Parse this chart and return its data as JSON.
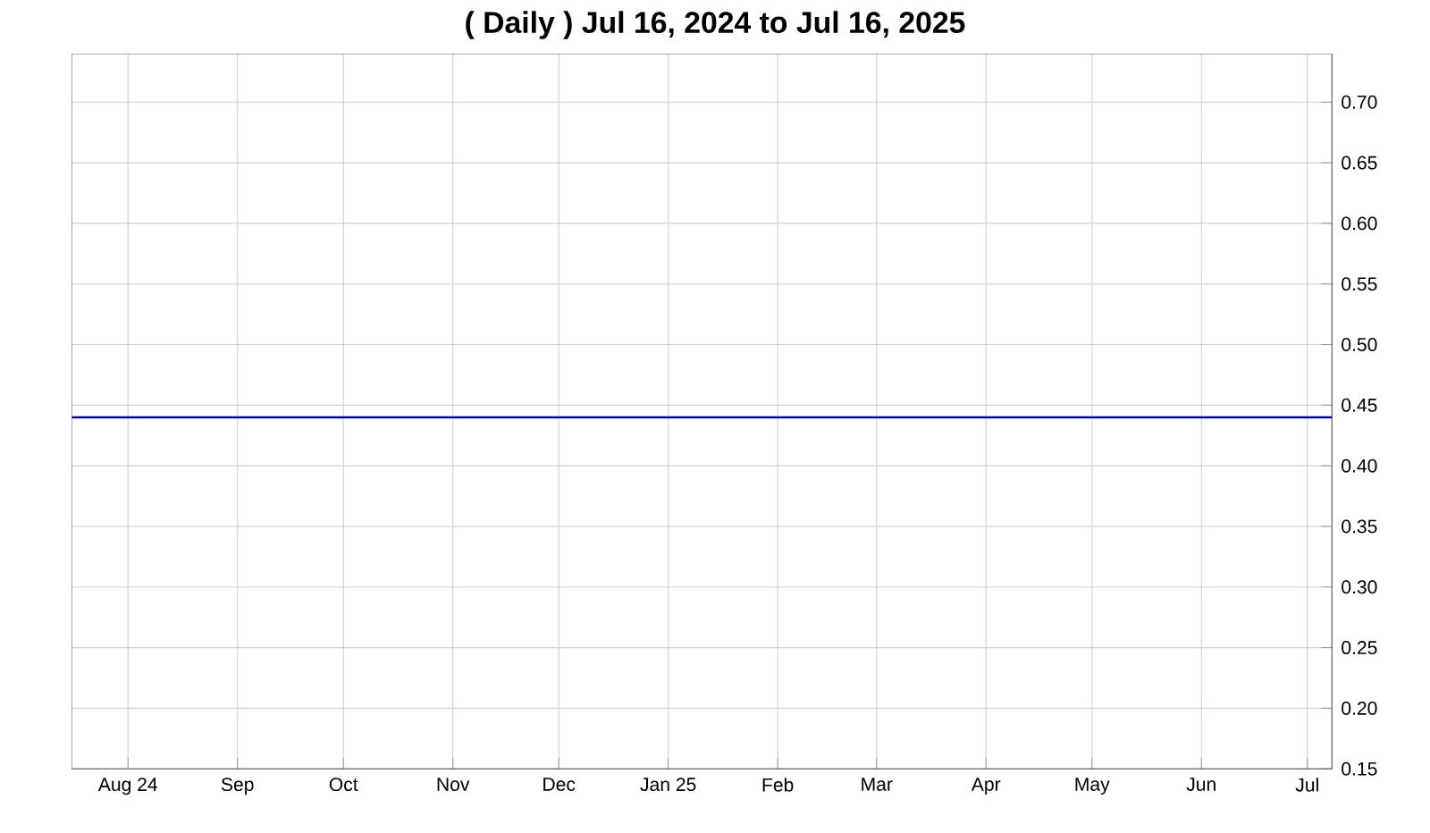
{
  "chart_data": {
    "type": "line",
    "title": "( Daily ) Jul 16, 2024 to Jul 16, 2025",
    "x": [
      "2024-07-16",
      "2025-07-08"
    ],
    "series": [
      {
        "color": "#000080",
        "values": [
          0.44,
          0.44
        ]
      }
    ],
    "xlim": [
      "2024-07-16",
      "2025-07-08"
    ],
    "xticks": [
      {
        "value": "2024-08-01",
        "label": "Aug 24"
      },
      {
        "value": "2024-09-01",
        "label": "Sep"
      },
      {
        "value": "2024-10-01",
        "label": "Oct"
      },
      {
        "value": "2024-11-01",
        "label": "Nov"
      },
      {
        "value": "2024-12-01",
        "label": "Dec"
      },
      {
        "value": "2025-01-01",
        "label": "Jan 25"
      },
      {
        "value": "2025-02-01",
        "label": "Feb"
      },
      {
        "value": "2025-03-01",
        "label": "Mar"
      },
      {
        "value": "2025-04-01",
        "label": "Apr"
      },
      {
        "value": "2025-05-01",
        "label": "May"
      },
      {
        "value": "2025-06-01",
        "label": "Jun"
      },
      {
        "value": "2025-07-01",
        "label": "Jul"
      }
    ],
    "ylim": [
      0.15,
      0.74
    ],
    "yticks": [
      {
        "value": 0.15,
        "label": "0.15"
      },
      {
        "value": 0.2,
        "label": "0.20"
      },
      {
        "value": 0.25,
        "label": "0.25"
      },
      {
        "value": 0.3,
        "label": "0.30"
      },
      {
        "value": 0.35,
        "label": "0.35"
      },
      {
        "value": 0.4,
        "label": "0.40"
      },
      {
        "value": 0.45,
        "label": "0.45"
      },
      {
        "value": 0.5,
        "label": "0.50"
      },
      {
        "value": 0.55,
        "label": "0.55"
      },
      {
        "value": 0.6,
        "label": "0.60"
      },
      {
        "value": 0.65,
        "label": "0.65"
      },
      {
        "value": 0.7,
        "label": "0.70"
      }
    ],
    "grid": true,
    "legend": false,
    "marker": "none",
    "line_style": "solid"
  }
}
